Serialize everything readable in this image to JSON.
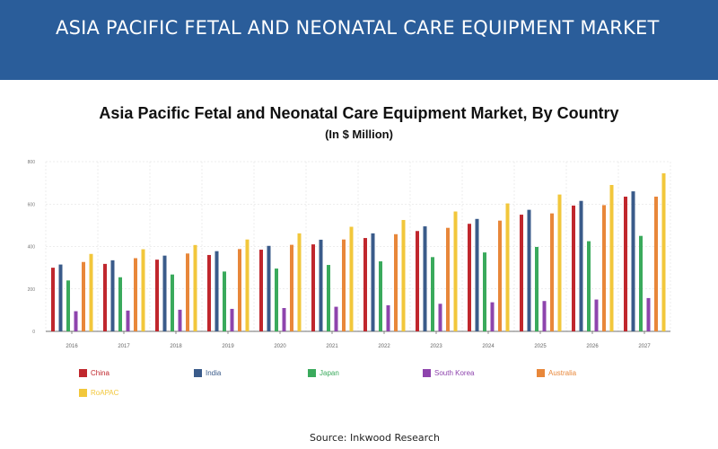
{
  "banner": {
    "title": "ASIA PACIFIC FETAL AND NEONATAL CARE EQUIPMENT MARKET"
  },
  "source": "Source: Inkwood Research",
  "colors": {
    "banner_bg": "#2a5d9a"
  },
  "chart_data": {
    "type": "bar",
    "title": "Asia Pacific Fetal and Neonatal Care Equipment Market, By Country",
    "subtitle": "(In $ Million)",
    "xlabel": "",
    "ylabel": "",
    "ylim": [
      0,
      800
    ],
    "yticks": [
      0,
      200,
      400,
      600,
      800
    ],
    "grid": true,
    "legend_position": "bottom",
    "categories": [
      "2016",
      "2017",
      "2018",
      "2019",
      "2020",
      "2021",
      "2022",
      "2023",
      "2024",
      "2025",
      "2026",
      "2027"
    ],
    "series": [
      {
        "name": "China",
        "color": "#c0272d",
        "values": [
          300,
          318,
          338,
          360,
          385,
          410,
          440,
          473,
          507,
          550,
          593,
          635
        ]
      },
      {
        "name": "India",
        "color": "#3a5b8a",
        "values": [
          315,
          335,
          357,
          378,
          403,
          432,
          462,
          495,
          530,
          573,
          615,
          660
        ]
      },
      {
        "name": "Japan",
        "color": "#3aaa5c",
        "values": [
          240,
          255,
          268,
          282,
          296,
          313,
          330,
          350,
          372,
          398,
          425,
          450
        ]
      },
      {
        "name": "South Korea",
        "color": "#8e44ad",
        "values": [
          95,
          98,
          102,
          106,
          110,
          116,
          123,
          130,
          137,
          143,
          150,
          157
        ]
      },
      {
        "name": "Australia",
        "color": "#e8873a",
        "values": [
          327,
          345,
          367,
          388,
          408,
          433,
          458,
          488,
          522,
          556,
          595,
          635
        ]
      },
      {
        "name": "RoAPAC",
        "color": "#f2c73b",
        "values": [
          365,
          387,
          407,
          433,
          462,
          493,
          525,
          565,
          603,
          645,
          690,
          745
        ]
      }
    ]
  }
}
